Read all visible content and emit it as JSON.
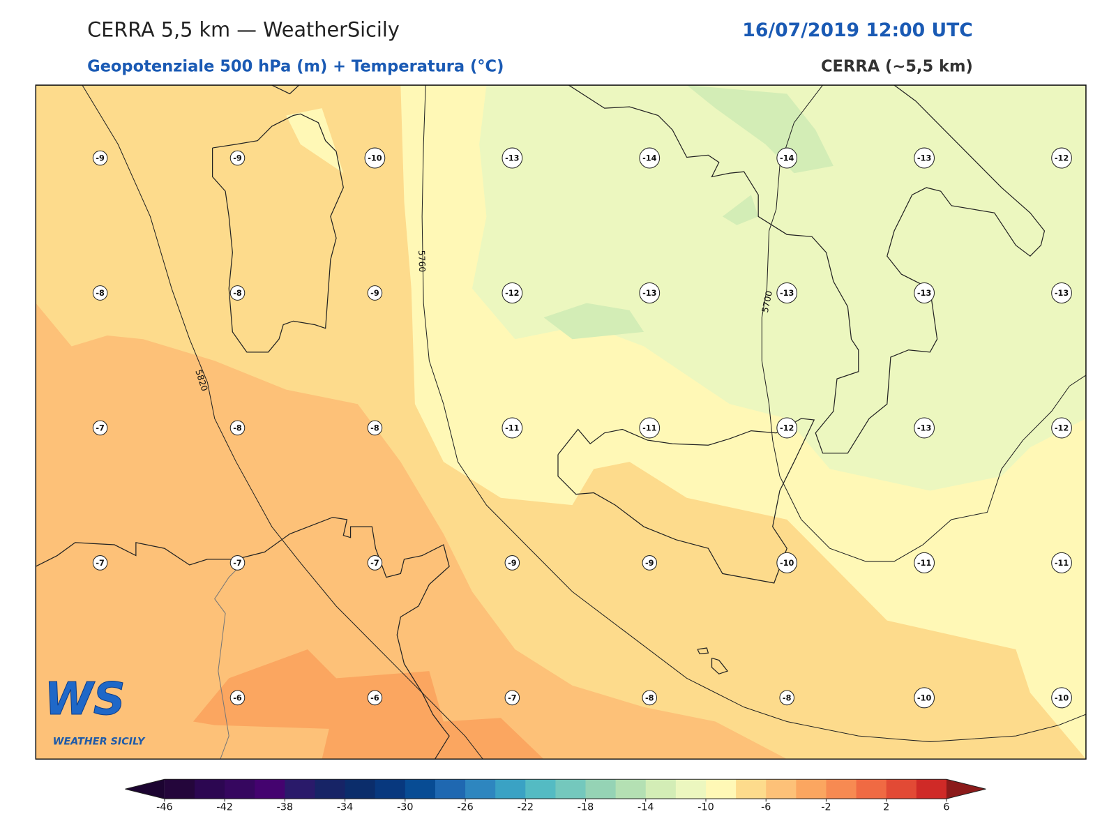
{
  "header": {
    "title": "CERRA 5,5 km — WeatherSicily",
    "datetime": "16/07/2019 12:00 UTC",
    "subtitle": "Geopotenziale 500 hPa (m) + Temperatura (°C)",
    "model": "CERRA (~5,5 km)"
  },
  "map": {
    "grid_labels": {
      "rows": [
        [
          -9,
          -9,
          -10,
          -13,
          -14,
          -14,
          -13,
          -12
        ],
        [
          -8,
          -8,
          -9,
          -12,
          -13,
          -13,
          -13,
          -13
        ],
        [
          -7,
          -8,
          -8,
          -11,
          -11,
          -12,
          -13,
          -12
        ],
        [
          -7,
          -7,
          -7,
          -9,
          -9,
          -10,
          -11,
          -11
        ],
        [
          null,
          -6,
          -6,
          -7,
          -8,
          -8,
          -10,
          -10
        ]
      ]
    },
    "contour_labels": [
      5820,
      5760,
      5700
    ]
  },
  "logo": {
    "mark": "WS",
    "name": "WEATHER SICILY"
  },
  "colorbar": {
    "ticks": [
      -46,
      -42,
      -38,
      -34,
      -30,
      -26,
      -22,
      -18,
      -14,
      -10,
      -6,
      -2,
      2,
      6
    ],
    "colors": [
      "#24063b",
      "#2c0751",
      "#36075f",
      "#44036f",
      "#2a1a6a",
      "#172466",
      "#0b2d6b",
      "#08387e",
      "#084c94",
      "#1f68b1",
      "#2e86bf",
      "#3aa2c4",
      "#54bbc3",
      "#74c8bd",
      "#95d3b5",
      "#b4e0b3",
      "#d3edb6",
      "#ecf7bf",
      "#fff8b6",
      "#fddb8c",
      "#fdc178",
      "#fba660",
      "#f78a52",
      "#f06a43",
      "#e24a35",
      "#cf2a27"
    ],
    "under_color": "#1c0431",
    "over_color": "#8b1a1a"
  }
}
